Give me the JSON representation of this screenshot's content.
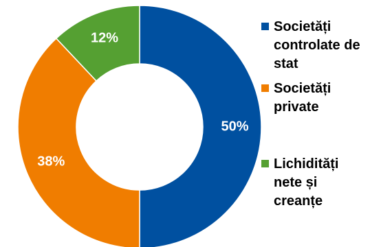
{
  "chart_data": {
    "type": "pie",
    "title": "",
    "categories": [
      "Societăți\ncontrolate de\nstat",
      "Societăți\nprivate",
      "Lichidități\nnete și\ncreanțe"
    ],
    "values": [
      50,
      38,
      12
    ],
    "value_labels": [
      "50%",
      "38%",
      "12%"
    ],
    "colors": [
      "#0050a0",
      "#f07d00",
      "#55a032"
    ],
    "donut": true,
    "start_angle_deg": 0,
    "direction": "clockwise",
    "legend_position": "right"
  }
}
